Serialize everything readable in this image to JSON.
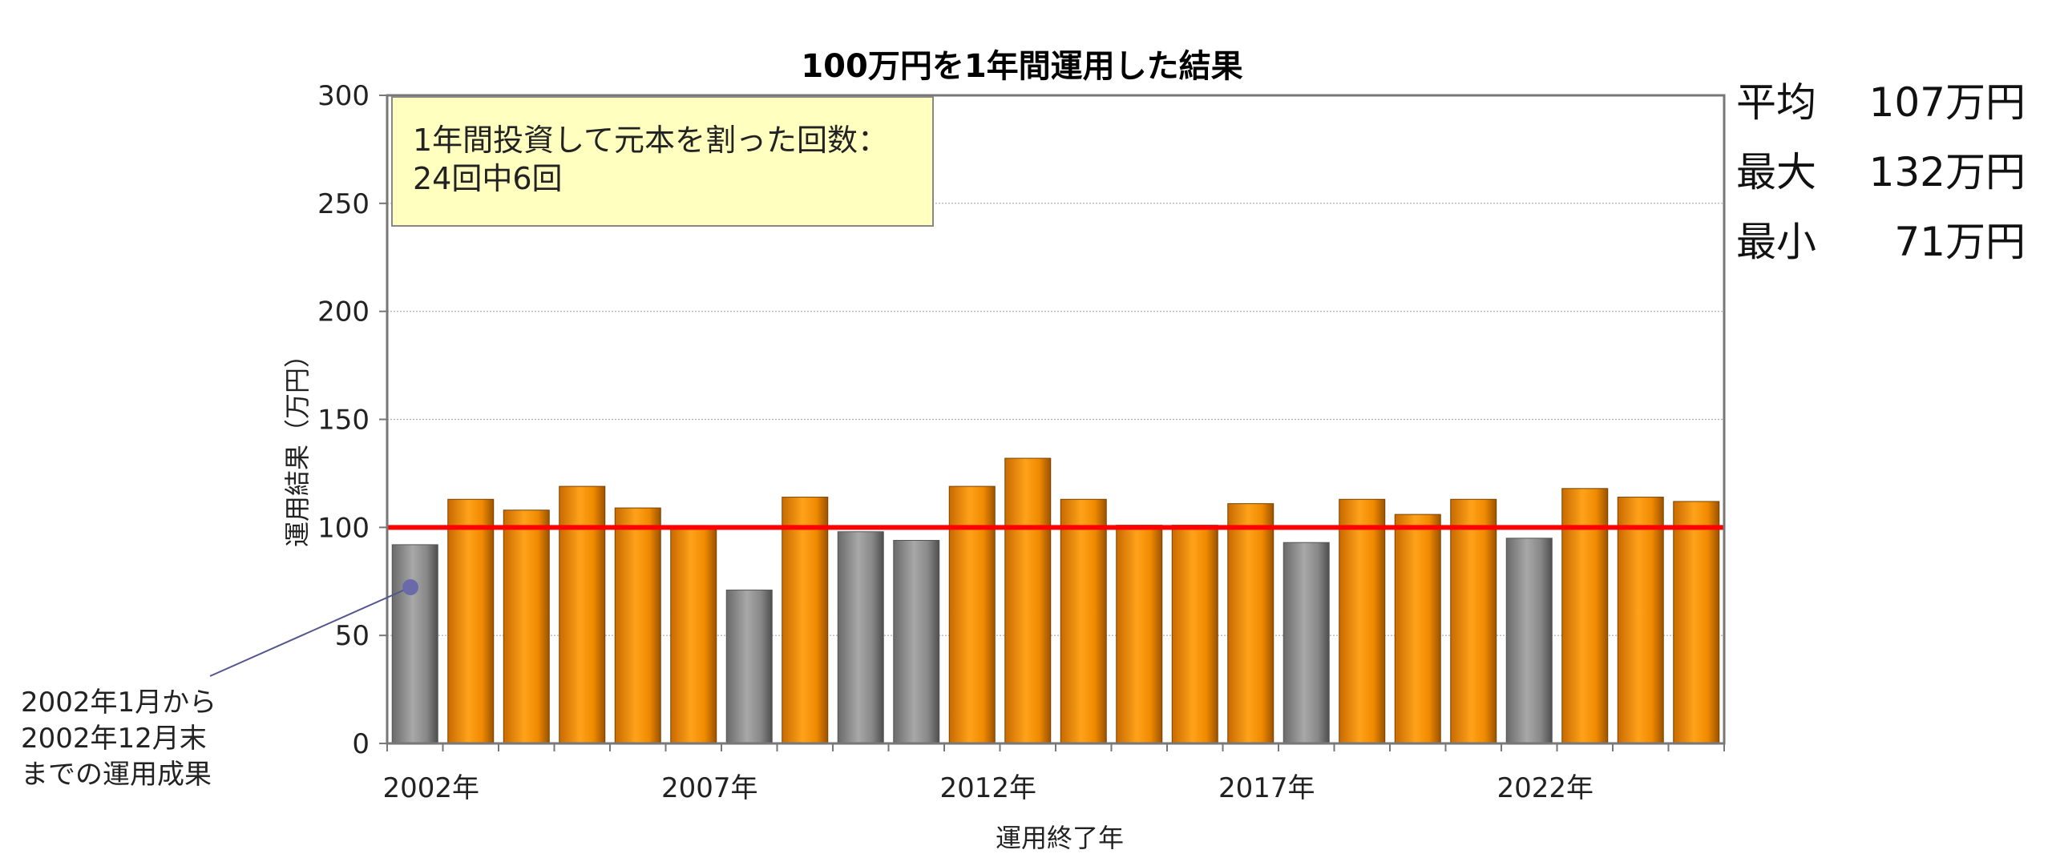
{
  "chart_data": {
    "type": "bar",
    "title": "100万円を1年間運用した結果",
    "xlabel": "運用終了年",
    "ylabel": "運用結果（万円）",
    "ylim": [
      0,
      300
    ],
    "yticks": [
      0,
      50,
      100,
      150,
      200,
      250,
      300
    ],
    "grid": true,
    "reference_line": {
      "value": 100,
      "color": "#ff0000"
    },
    "categories": [
      "2002",
      "2003",
      "2004",
      "2005",
      "2006",
      "2007",
      "2008",
      "2009",
      "2010",
      "2011",
      "2012",
      "2013",
      "2014",
      "2015",
      "2016",
      "2017",
      "2018",
      "2019",
      "2020",
      "2021",
      "2022",
      "2023",
      "2024",
      "2025"
    ],
    "xtick_labels": [
      {
        "index": 0,
        "label": "2002年"
      },
      {
        "index": 5,
        "label": "2007年"
      },
      {
        "index": 10,
        "label": "2012年"
      },
      {
        "index": 15,
        "label": "2017年"
      },
      {
        "index": 20,
        "label": "2022年"
      }
    ],
    "values": [
      92,
      113,
      108,
      119,
      109,
      100,
      71,
      114,
      98,
      94,
      119,
      132,
      113,
      101,
      101,
      111,
      93,
      113,
      106,
      113,
      95,
      118,
      114,
      112
    ],
    "colors": {
      "above": "#f29100",
      "below": "#8a8a8a"
    }
  },
  "info_box": {
    "line1": "1年間投資して元本を割った回数：",
    "line2": "24回中6回"
  },
  "stats": [
    {
      "label": "平均",
      "value": "107万円"
    },
    {
      "label": "最大",
      "value": "132万円"
    },
    {
      "label": "最小",
      "value": "71万円"
    }
  ],
  "annotation": {
    "lines": [
      "2002年1月から",
      "2002年12月末",
      "までの運用成果"
    ]
  }
}
